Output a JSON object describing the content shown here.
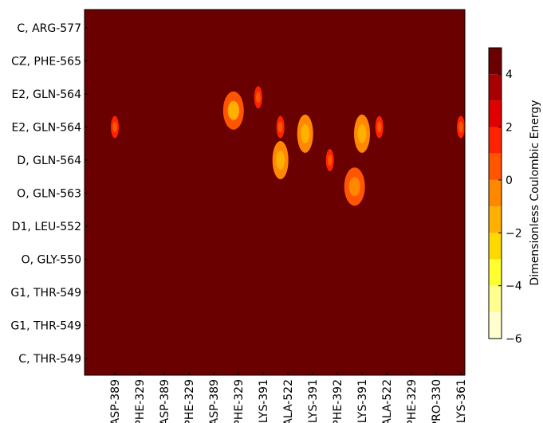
{
  "chart_data": {
    "type": "heatmap",
    "title": "",
    "xlabel": "",
    "ylabel": "",
    "y_tick_labels": [
      "C, ARG-577",
      "CZ, PHE-565",
      "E2, GLN-564",
      "E2, GLN-564",
      "D, GLN-564",
      "O, GLN-563",
      "D1, LEU-552",
      "O, GLY-550",
      "G1, THR-549",
      "G1, THR-549",
      "C, THR-549"
    ],
    "x_tick_labels": [
      "ASP-389",
      "PHE-329",
      "ASP-389",
      "PHE-329",
      "ASP-389",
      "PHE-329",
      "LYS-391",
      "ALA-522",
      "LYS-391",
      "PHE-392",
      "LYS-391",
      "ALA-522",
      "PHE-329",
      "PRO-330",
      "LYS-361"
    ],
    "colorbar": {
      "label": "Dimensionless Coulombic Energy",
      "range": [
        -6,
        5
      ],
      "ticks": [
        4,
        2,
        0,
        -2,
        -4,
        -6
      ],
      "levels": [
        -6,
        -5,
        -4,
        -3,
        -2,
        -1,
        0,
        1,
        2,
        3,
        4,
        5
      ],
      "colors": [
        "#ffffd0",
        "#ffff90",
        "#ffff30",
        "#ffd800",
        "#ffb000",
        "#ff8800",
        "#ff5500",
        "#ff2200",
        "#e00000",
        "#a80000",
        "#6a0000",
        "#3a0000"
      ]
    },
    "background_value": 4.5,
    "features": [
      {
        "row": 2.5,
        "col": 5.8,
        "value": 0.0,
        "core": -1.5
      },
      {
        "row": 2.1,
        "col": 6.8,
        "value": 1.0,
        "core": 0.0
      },
      {
        "row": 3.0,
        "col": 1.0,
        "value": 1.0,
        "core": 0.0
      },
      {
        "row": 3.0,
        "col": 7.7,
        "value": 1.0,
        "core": 0.0
      },
      {
        "row": 3.2,
        "col": 8.7,
        "value": -1.0,
        "core": -2.0
      },
      {
        "row": 3.2,
        "col": 11.0,
        "value": -1.0,
        "core": -2.0
      },
      {
        "row": 3.0,
        "col": 11.7,
        "value": 1.0,
        "core": 0.0
      },
      {
        "row": 3.0,
        "col": 15.0,
        "value": 1.0,
        "core": 0.0
      },
      {
        "row": 4.0,
        "col": 7.7,
        "value": -0.5,
        "core": -1.5
      },
      {
        "row": 4.0,
        "col": 9.7,
        "value": 1.0,
        "core": 0.0
      },
      {
        "row": 4.8,
        "col": 10.7,
        "value": 0.0,
        "core": -1.0
      }
    ]
  }
}
